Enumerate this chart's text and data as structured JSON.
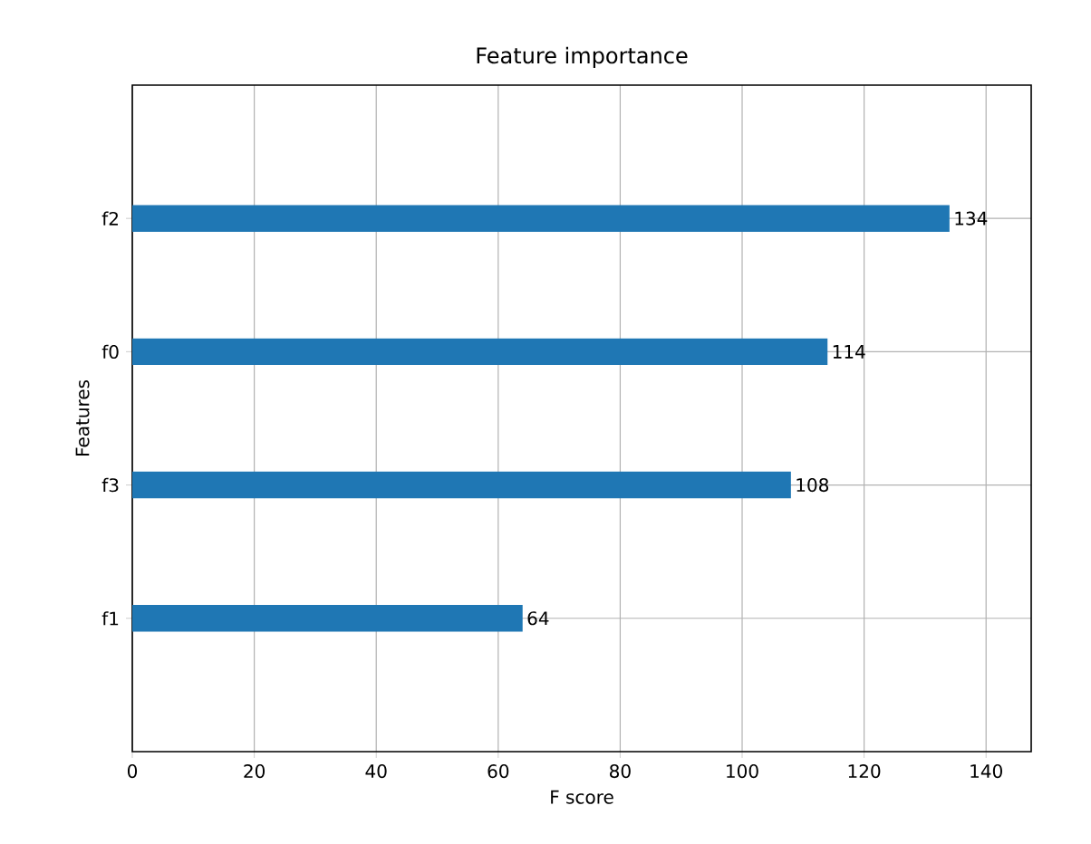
{
  "chart_data": {
    "type": "bar",
    "orientation": "horizontal",
    "title": "Feature importance",
    "xlabel": "F score",
    "ylabel": "Features",
    "categories": [
      "f2",
      "f0",
      "f3",
      "f1"
    ],
    "values": [
      134,
      114,
      108,
      64
    ],
    "color": "#1f77b4",
    "xlim": [
      0,
      147.4
    ],
    "xticks": [
      0,
      20,
      40,
      60,
      80,
      100,
      120,
      140
    ],
    "grid": true,
    "data_labels": true
  }
}
